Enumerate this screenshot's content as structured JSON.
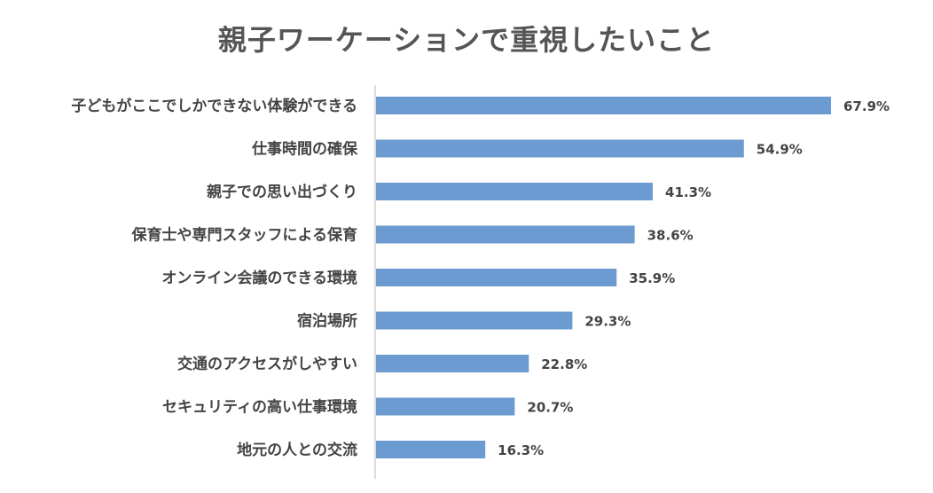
{
  "chart_data": {
    "type": "bar",
    "orientation": "horizontal",
    "title": "親子ワーケーションで重視したいこと",
    "categories": [
      "子どもがここでしかできない体験ができる",
      "仕事時間の確保",
      "親子での思い出づくり",
      "保育士や専門スタッフによる保育",
      "オンライン会議のできる環境",
      "宿泊場所",
      "交通のアクセスがしやすい",
      "セキュリティの高い仕事環境",
      "地元の人との交流"
    ],
    "values": [
      67.9,
      54.9,
      41.3,
      38.6,
      35.9,
      29.3,
      22.8,
      20.7,
      16.3
    ],
    "value_labels": [
      "67.9%",
      "54.9%",
      "41.3%",
      "38.6%",
      "35.9%",
      "29.3%",
      "22.8%",
      "20.7%",
      "16.3%"
    ],
    "xlim": [
      0,
      70
    ],
    "grid": false,
    "legend": "none",
    "colors": {
      "bar": "#6b9bd1",
      "axis": "#d0d0d0",
      "text": "#444444",
      "title": "#555555"
    }
  }
}
